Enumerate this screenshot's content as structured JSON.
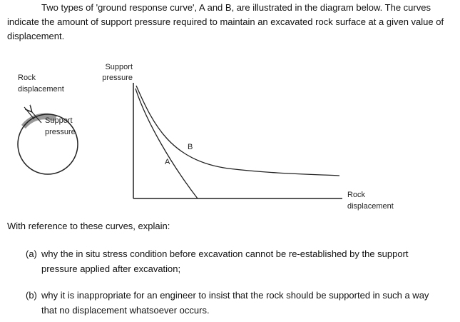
{
  "intro": "Two types of 'ground response curve', A and B, are illustrated in the diagram below. The curves indicate the amount of support pressure required to maintain an excavated rock surface at a given value of displacement.",
  "diagram": {
    "left_rock_label": [
      "Rock",
      "displacement"
    ],
    "left_support_label": [
      "Support",
      "pressure"
    ],
    "y_axis_label": [
      "Support",
      "pressure"
    ],
    "x_axis_label": [
      "Rock",
      "displacement"
    ],
    "curve_a_label": "A",
    "curve_b_label": "B"
  },
  "prompt": "With reference to these curves, explain:",
  "questions": [
    {
      "marker": "(a)",
      "text": "why the in situ stress condition before excavation cannot be re-established by the support pressure applied after excavation;"
    },
    {
      "marker": "(b)",
      "text": "why it is inappropriate for an engineer to insist that the rock should be supported in such a way that no displacement whatsoever occurs."
    }
  ]
}
